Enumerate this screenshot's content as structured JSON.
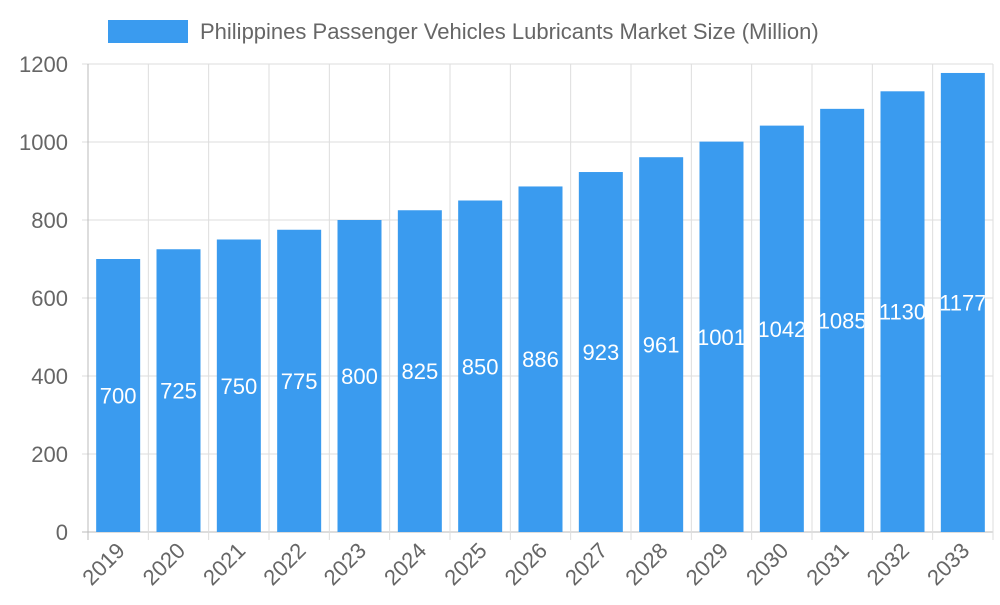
{
  "chart_data": {
    "type": "bar",
    "title": "",
    "legend": {
      "position": "top",
      "entries": [
        "Philippines Passenger Vehicles Lubricants Market Size (Million)"
      ]
    },
    "categories": [
      "2019",
      "2020",
      "2021",
      "2022",
      "2023",
      "2024",
      "2025",
      "2026",
      "2027",
      "2028",
      "2029",
      "2030",
      "2031",
      "2032",
      "2033"
    ],
    "series": [
      {
        "name": "Philippines Passenger Vehicles Lubricants Market Size (Million)",
        "values": [
          700,
          725,
          750,
          775,
          800,
          825,
          850,
          886,
          923,
          961,
          1001,
          1042,
          1085,
          1130,
          1177
        ],
        "color": "#3a9bef"
      }
    ],
    "xlabel": "",
    "ylabel": "",
    "ylim": [
      0,
      1200
    ],
    "yticks": [
      0,
      200,
      400,
      600,
      800,
      1000,
      1200
    ],
    "grid": true,
    "data_labels": true
  }
}
